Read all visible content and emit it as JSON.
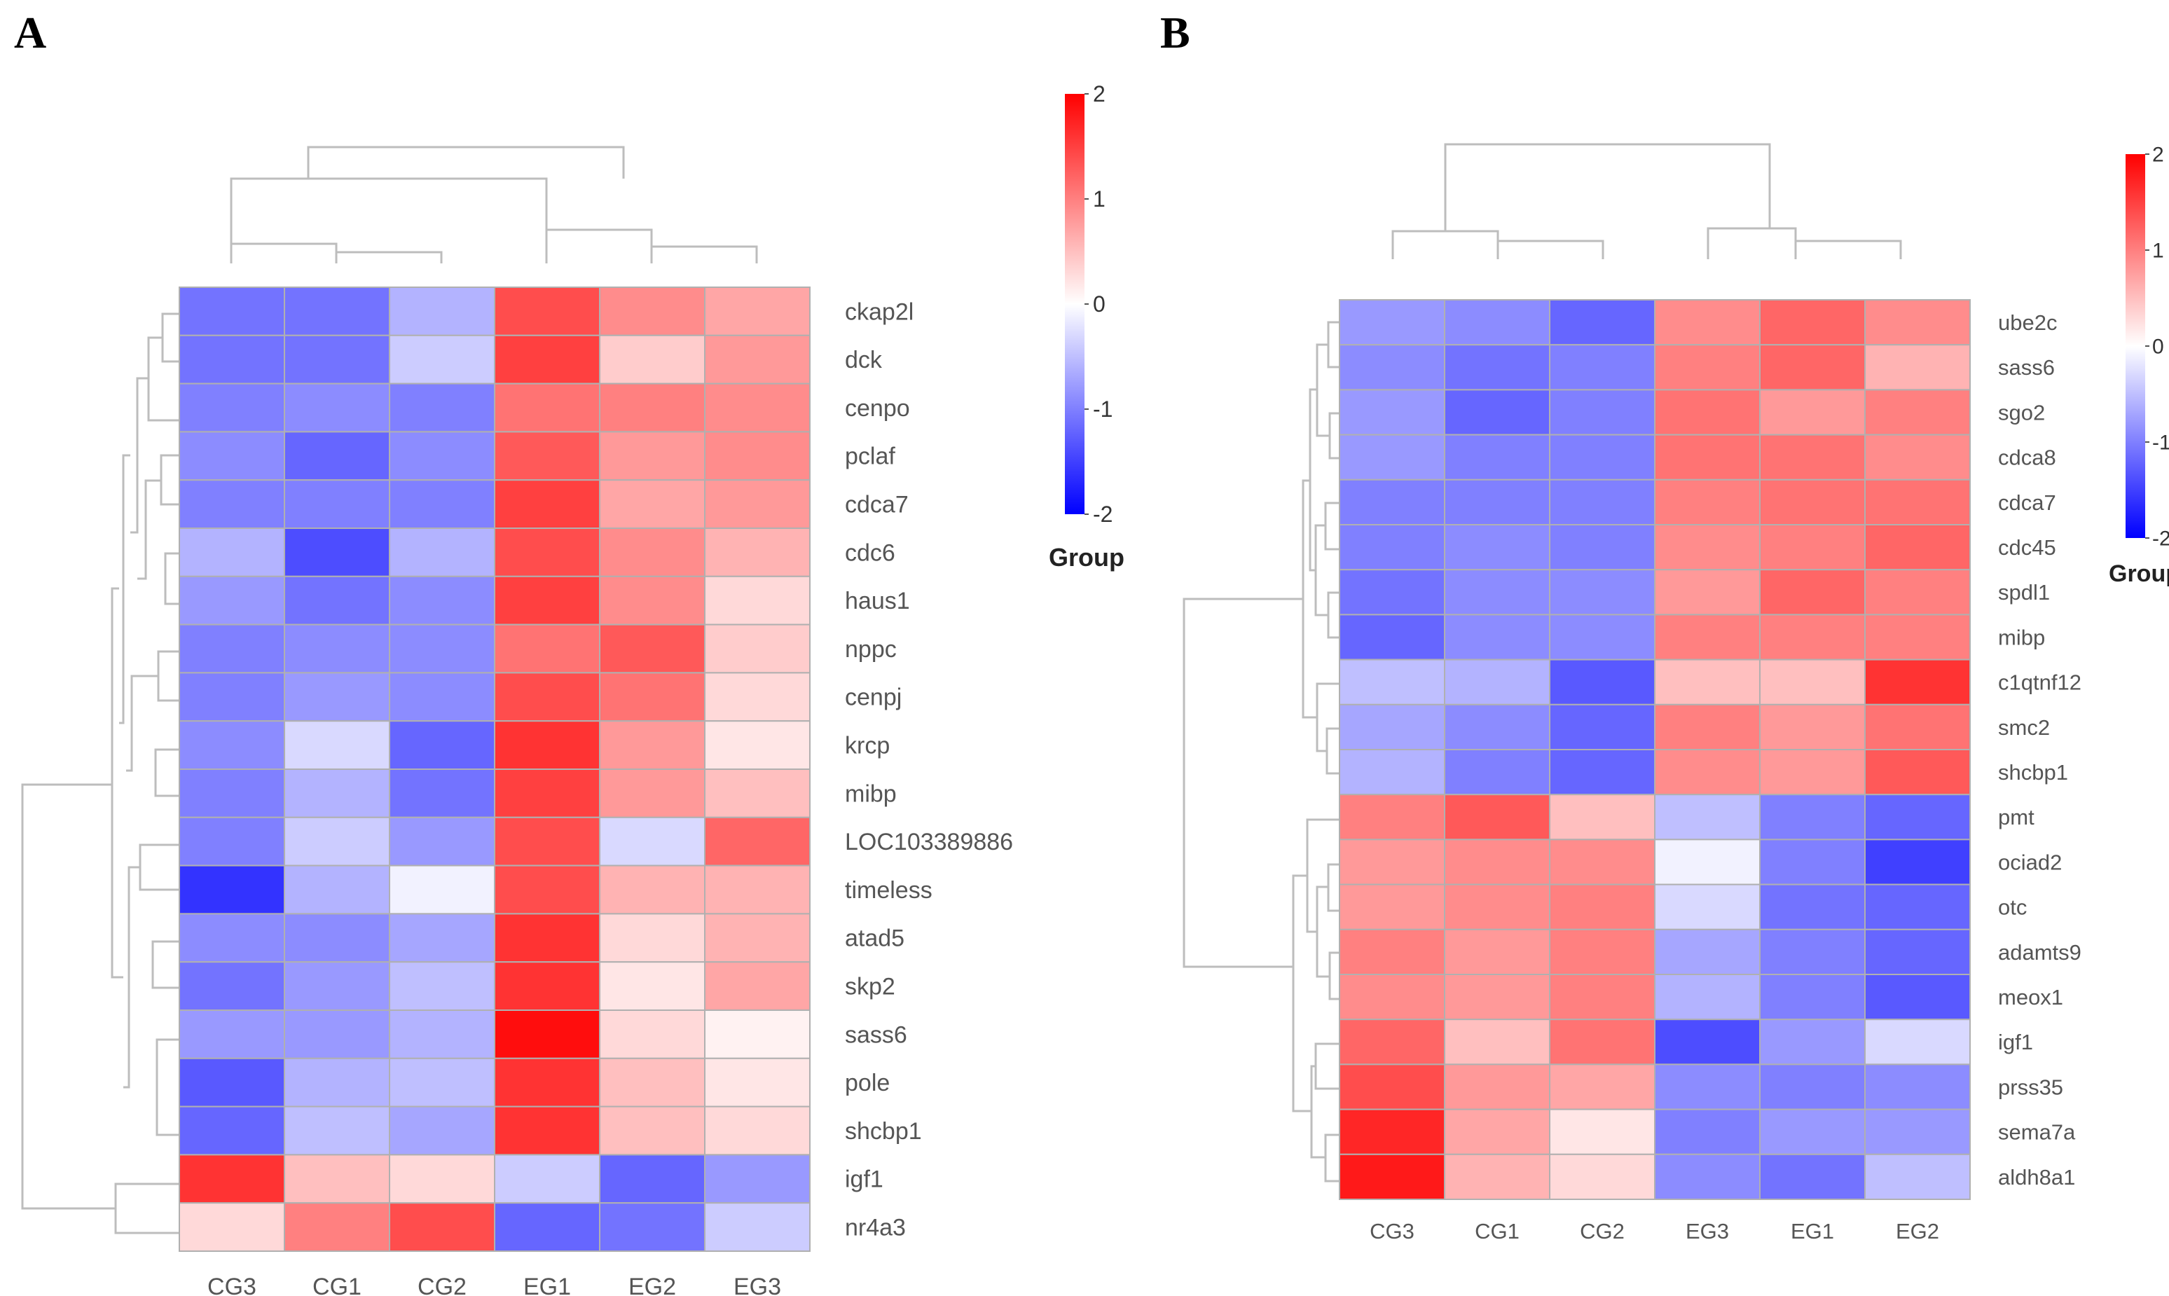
{
  "colors": {
    "low": "#0000ff",
    "mid": "#ffffff",
    "high": "#ff0000",
    "grid": "#b0b0b0",
    "dendrogram": "#bdbdbd"
  },
  "chart_data": [
    {
      "type": "heatmap",
      "panel_label": "A",
      "legend": {
        "title": "Group",
        "ticks": [
          "2",
          "1",
          "0",
          "-1",
          "-2"
        ],
        "range": [
          -2,
          2
        ]
      },
      "columns": [
        "CG3",
        "CG1",
        "CG2",
        "EG1",
        "EG2",
        "EG3"
      ],
      "rows": [
        "ckap2l",
        "dck",
        "cenpo",
        "pclaf",
        "cdca7",
        "cdc6",
        "haus1",
        "nppc",
        "cenpj",
        "krcp",
        "mibp",
        "LOC103389886",
        "timeless",
        "atad5",
        "skp2",
        "sass6",
        "pole",
        "shcbp1",
        "igf1",
        "nr4a3"
      ],
      "values": [
        [
          -1.1,
          -1.1,
          -0.6,
          1.4,
          0.9,
          0.7
        ],
        [
          -1.1,
          -1.1,
          -0.4,
          1.5,
          0.4,
          0.8
        ],
        [
          -1.0,
          -0.9,
          -1.0,
          1.1,
          1.0,
          0.9
        ],
        [
          -0.9,
          -1.2,
          -0.9,
          1.3,
          0.8,
          0.9
        ],
        [
          -1.0,
          -1.0,
          -1.0,
          1.5,
          0.7,
          0.8
        ],
        [
          -0.6,
          -1.4,
          -0.6,
          1.4,
          0.9,
          0.6
        ],
        [
          -0.8,
          -1.1,
          -0.9,
          1.5,
          0.9,
          0.3
        ],
        [
          -1.0,
          -0.9,
          -0.9,
          1.1,
          1.3,
          0.4
        ],
        [
          -1.0,
          -0.8,
          -0.9,
          1.4,
          1.1,
          0.3
        ],
        [
          -0.9,
          -0.3,
          -1.2,
          1.6,
          0.8,
          0.2
        ],
        [
          -1.0,
          -0.6,
          -1.1,
          1.5,
          0.8,
          0.5
        ],
        [
          -1.0,
          -0.4,
          -0.8,
          1.4,
          -0.3,
          1.2
        ],
        [
          -1.6,
          -0.6,
          -0.1,
          1.4,
          0.6,
          0.6
        ],
        [
          -0.9,
          -0.9,
          -0.7,
          1.6,
          0.3,
          0.6
        ],
        [
          -1.1,
          -0.8,
          -0.5,
          1.6,
          0.2,
          0.7
        ],
        [
          -0.8,
          -0.8,
          -0.6,
          1.9,
          0.3,
          0.1
        ],
        [
          -1.3,
          -0.6,
          -0.5,
          1.6,
          0.5,
          0.2
        ],
        [
          -1.2,
          -0.5,
          -0.7,
          1.6,
          0.5,
          0.3
        ],
        [
          1.6,
          0.5,
          0.3,
          -0.4,
          -1.2,
          -0.8
        ],
        [
          0.3,
          1.0,
          1.4,
          -1.2,
          -1.1,
          -0.4
        ]
      ]
    },
    {
      "type": "heatmap",
      "panel_label": "B",
      "legend": {
        "title": "Group",
        "ticks": [
          "2",
          "1",
          "0",
          "-1",
          "-2"
        ],
        "range": [
          -2,
          2
        ]
      },
      "columns": [
        "CG3",
        "CG1",
        "CG2",
        "EG3",
        "EG1",
        "EG2"
      ],
      "rows": [
        "ube2c",
        "sass6",
        "sgo2",
        "cdca8",
        "cdca7",
        "cdc45",
        "spdl1",
        "mibp",
        "c1qtnf12",
        "smc2",
        "shcbp1",
        "pmt",
        "ociad2",
        "otc",
        "adamts9",
        "meox1",
        "igf1",
        "prss35",
        "sema7a",
        "aldh8a1"
      ],
      "values": [
        [
          -0.8,
          -0.9,
          -1.2,
          0.9,
          1.2,
          0.9
        ],
        [
          -0.9,
          -1.1,
          -1.0,
          1.0,
          1.2,
          0.6
        ],
        [
          -0.8,
          -1.2,
          -1.0,
          1.1,
          0.8,
          1.0
        ],
        [
          -0.8,
          -1.0,
          -1.0,
          1.1,
          1.1,
          0.9
        ],
        [
          -1.0,
          -1.0,
          -1.0,
          1.0,
          1.1,
          1.1
        ],
        [
          -1.0,
          -0.9,
          -1.0,
          0.9,
          1.0,
          1.2
        ],
        [
          -1.1,
          -0.9,
          -0.9,
          0.8,
          1.2,
          1.0
        ],
        [
          -1.2,
          -0.9,
          -0.9,
          1.0,
          1.0,
          1.0
        ],
        [
          -0.5,
          -0.6,
          -1.3,
          0.5,
          0.5,
          1.6
        ],
        [
          -0.7,
          -0.9,
          -1.2,
          1.0,
          0.8,
          1.1
        ],
        [
          -0.6,
          -1.0,
          -1.2,
          0.9,
          0.8,
          1.3
        ],
        [
          1.0,
          1.3,
          0.5,
          -0.5,
          -1.0,
          -1.2
        ],
        [
          0.8,
          0.9,
          0.9,
          -0.1,
          -1.0,
          -1.5
        ],
        [
          0.8,
          0.9,
          1.0,
          -0.3,
          -1.1,
          -1.2
        ],
        [
          1.0,
          0.8,
          1.0,
          -0.7,
          -1.0,
          -1.2
        ],
        [
          0.9,
          0.8,
          1.0,
          -0.6,
          -1.0,
          -1.3
        ],
        [
          1.2,
          0.5,
          1.1,
          -1.4,
          -0.8,
          -0.3
        ],
        [
          1.4,
          0.8,
          0.7,
          -0.9,
          -1.0,
          -0.9
        ],
        [
          1.7,
          0.7,
          0.2,
          -1.0,
          -0.8,
          -0.8
        ],
        [
          1.8,
          0.6,
          0.3,
          -0.9,
          -1.1,
          -0.5
        ]
      ]
    }
  ]
}
